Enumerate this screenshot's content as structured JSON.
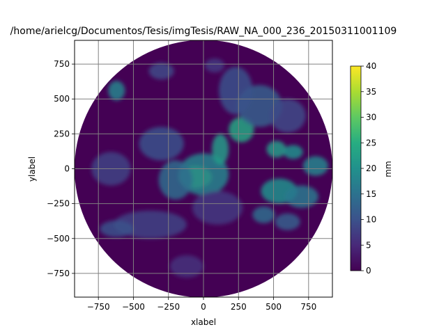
{
  "chart_data": {
    "type": "heatmap",
    "title": "/home/arielcg/Documentos/Tesis/imgTesis/RAW_NA_000_236_20150311001109",
    "xlabel": "xlabel",
    "ylabel": "ylabel",
    "xlim": [
      -920,
      920
    ],
    "ylim": [
      -920,
      920
    ],
    "xticks": [
      -750,
      -500,
      -250,
      0,
      250,
      500,
      750
    ],
    "yticks": [
      -750,
      -500,
      -250,
      0,
      250,
      500,
      750
    ],
    "xtick_labels": [
      "−750",
      "−500",
      "−250",
      "0",
      "250",
      "500",
      "750"
    ],
    "ytick_labels": [
      "−750",
      "−500",
      "−250",
      "0",
      "250",
      "500",
      "750"
    ],
    "grid": true,
    "radar_radius": 920,
    "background_value": 0,
    "colormap": "viridis",
    "colorbar": {
      "label": "mm",
      "min": 0,
      "max": 40,
      "ticks": [
        0,
        5,
        10,
        15,
        20,
        25,
        30,
        35,
        40
      ],
      "tick_labels": [
        "0",
        "5",
        "10",
        "15",
        "20",
        "25",
        "30",
        "35",
        "40"
      ]
    },
    "echo_regions": [
      {
        "x": -60,
        "y": -60,
        "rx": 120,
        "ry": 80,
        "value": 30
      },
      {
        "x": 0,
        "y": -40,
        "rx": 180,
        "ry": 150,
        "value": 18
      },
      {
        "x": -200,
        "y": -80,
        "rx": 120,
        "ry": 140,
        "value": 14
      },
      {
        "x": 270,
        "y": 280,
        "rx": 90,
        "ry": 90,
        "value": 24
      },
      {
        "x": 120,
        "y": 140,
        "rx": 60,
        "ry": 110,
        "value": 22
      },
      {
        "x": 400,
        "y": 450,
        "rx": 160,
        "ry": 150,
        "value": 12
      },
      {
        "x": 230,
        "y": 560,
        "rx": 120,
        "ry": 170,
        "value": 10
      },
      {
        "x": -300,
        "y": 180,
        "rx": 160,
        "ry": 120,
        "value": 10
      },
      {
        "x": -620,
        "y": 560,
        "rx": 60,
        "ry": 70,
        "value": 18
      },
      {
        "x": -300,
        "y": 700,
        "rx": 90,
        "ry": 60,
        "value": 9
      },
      {
        "x": 520,
        "y": 140,
        "rx": 70,
        "ry": 60,
        "value": 22
      },
      {
        "x": 640,
        "y": 120,
        "rx": 70,
        "ry": 50,
        "value": 20
      },
      {
        "x": 800,
        "y": 20,
        "rx": 90,
        "ry": 70,
        "value": 18
      },
      {
        "x": 540,
        "y": -160,
        "rx": 130,
        "ry": 90,
        "value": 20
      },
      {
        "x": 700,
        "y": -200,
        "rx": 120,
        "ry": 80,
        "value": 16
      },
      {
        "x": 430,
        "y": -330,
        "rx": 80,
        "ry": 60,
        "value": 14
      },
      {
        "x": 600,
        "y": -380,
        "rx": 90,
        "ry": 60,
        "value": 12
      },
      {
        "x": -380,
        "y": -400,
        "rx": 260,
        "ry": 100,
        "value": 8
      },
      {
        "x": -660,
        "y": 0,
        "rx": 140,
        "ry": 120,
        "value": 8
      },
      {
        "x": -620,
        "y": -430,
        "rx": 120,
        "ry": 60,
        "value": 10
      },
      {
        "x": 600,
        "y": 380,
        "rx": 130,
        "ry": 120,
        "value": 9
      },
      {
        "x": 100,
        "y": -280,
        "rx": 180,
        "ry": 120,
        "value": 7
      },
      {
        "x": -120,
        "y": -700,
        "rx": 120,
        "ry": 80,
        "value": 6
      },
      {
        "x": 80,
        "y": 740,
        "rx": 70,
        "ry": 50,
        "value": 7
      }
    ]
  }
}
